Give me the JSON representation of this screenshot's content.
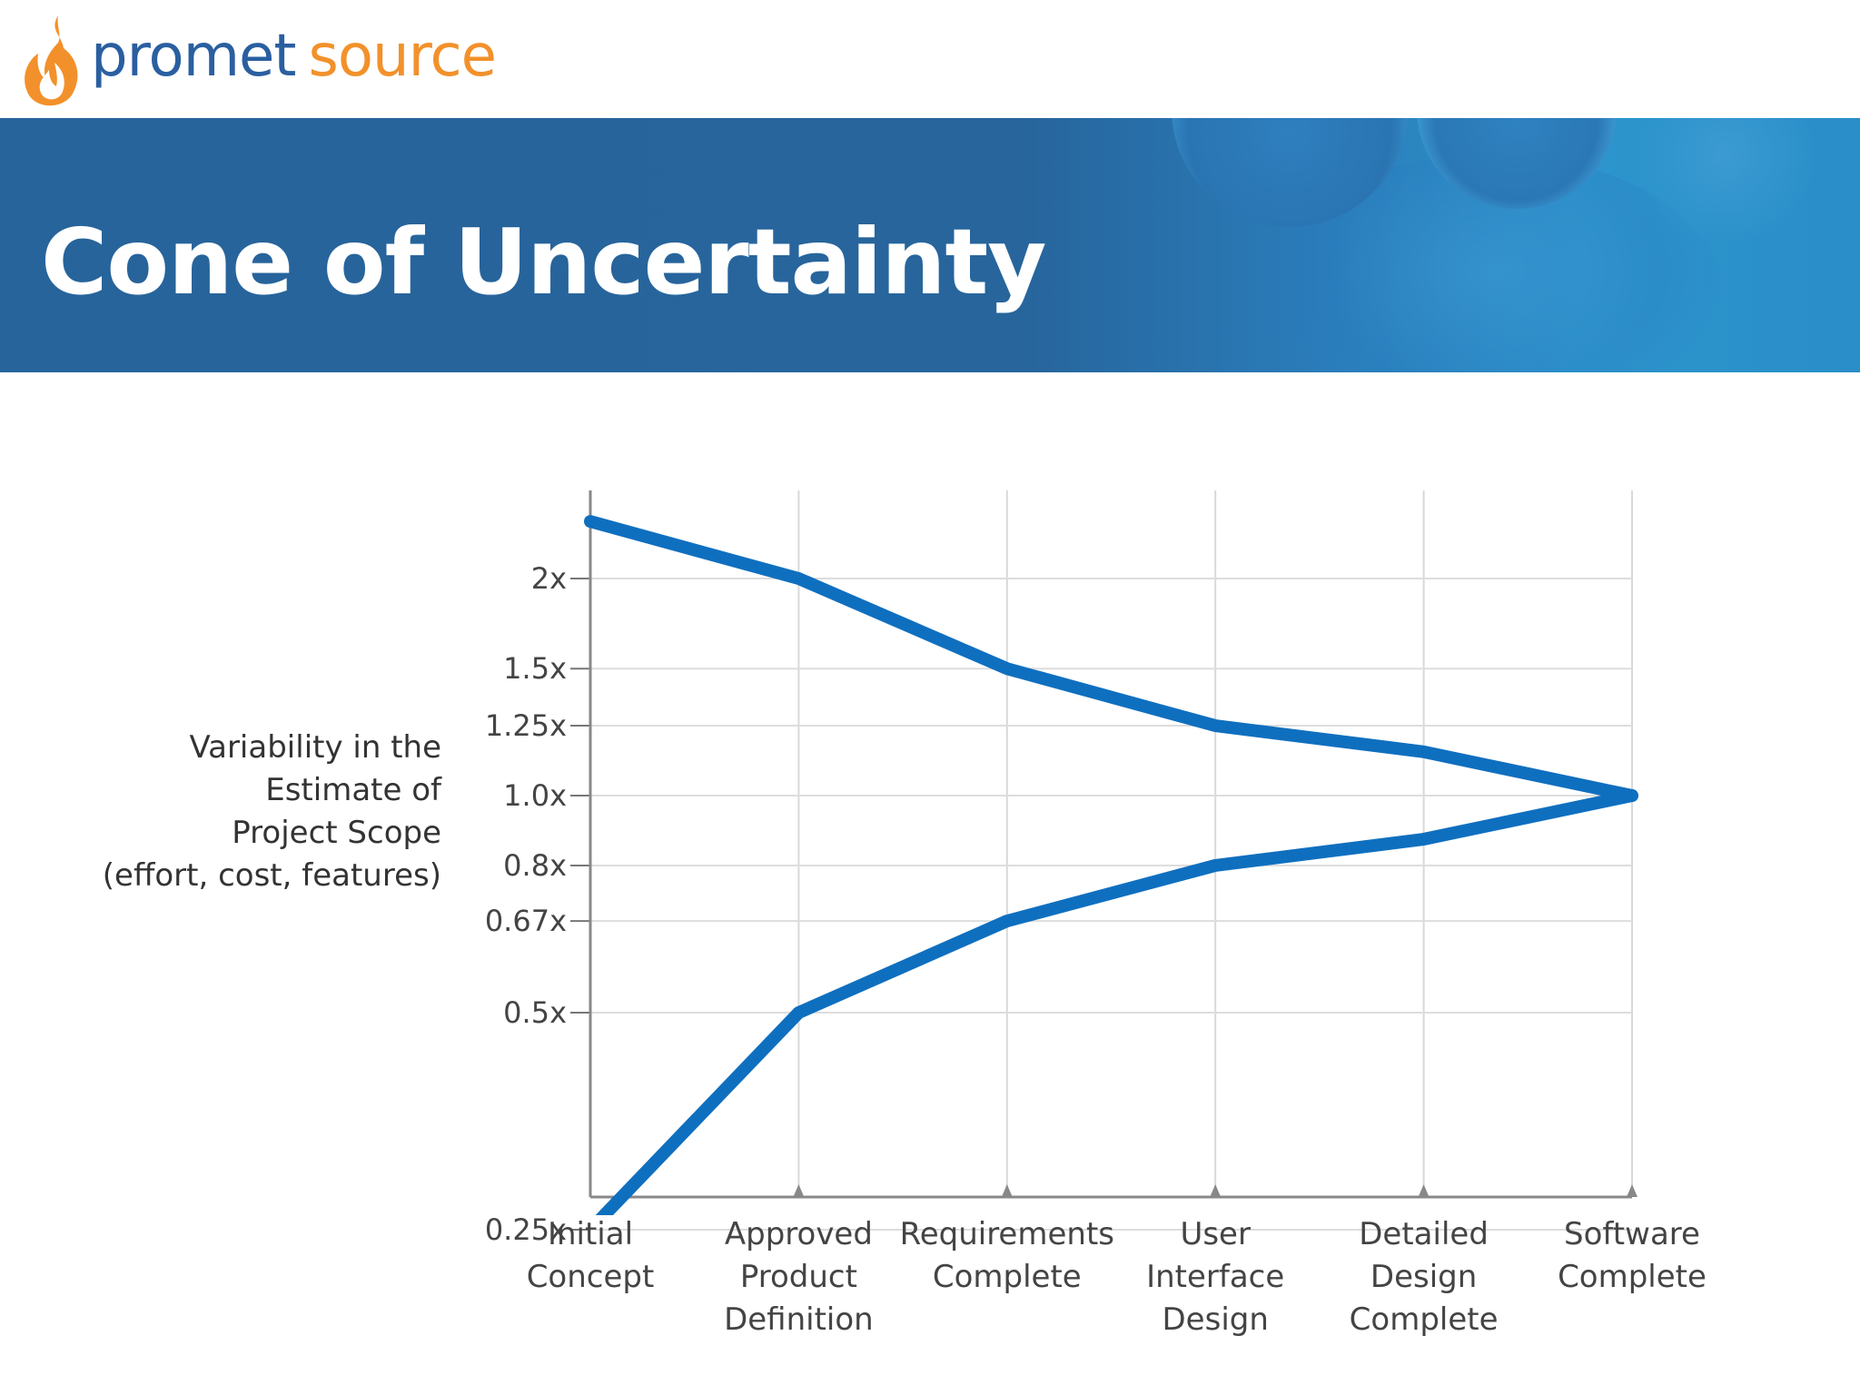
{
  "logo": {
    "part1": "promet",
    "part2": "source"
  },
  "slide": {
    "title": "Cone of Uncertainty"
  },
  "colors": {
    "banner": "#27649b",
    "line": "#0f6fbf",
    "logo_blue": "#2a5fa0",
    "logo_orange": "#f2912b"
  },
  "chart_data": {
    "type": "line",
    "ylabel_lines": [
      "Variability in the",
      "Estimate of",
      "Project Scope",
      "(effort, cost, features)"
    ],
    "categories": [
      [
        "Initial",
        "Concept"
      ],
      [
        "Approved",
        "Product",
        "Definition"
      ],
      [
        "Requirements",
        "Complete"
      ],
      [
        "User",
        "Interface",
        "Design"
      ],
      [
        "Detailed",
        "Design",
        "Complete"
      ],
      [
        "Software",
        "Complete"
      ]
    ],
    "y_ticks": [
      {
        "value": 2.0,
        "label": "2x"
      },
      {
        "value": 1.5,
        "label": "1.5x"
      },
      {
        "value": 1.25,
        "label": "1.25x"
      },
      {
        "value": 1.0,
        "label": "1.0x"
      },
      {
        "value": 0.8,
        "label": "0.8x"
      },
      {
        "value": 0.67,
        "label": "0.67x"
      },
      {
        "value": 0.5,
        "label": "0.5x"
      },
      {
        "value": 0.25,
        "label": "0.25x"
      }
    ],
    "series": [
      {
        "values": [
          2.4,
          2.0,
          1.5,
          1.25,
          1.15,
          1.0
        ]
      },
      {
        "values": [
          0.25,
          0.5,
          0.67,
          0.8,
          0.87,
          1.0
        ]
      }
    ],
    "grid": true
  }
}
